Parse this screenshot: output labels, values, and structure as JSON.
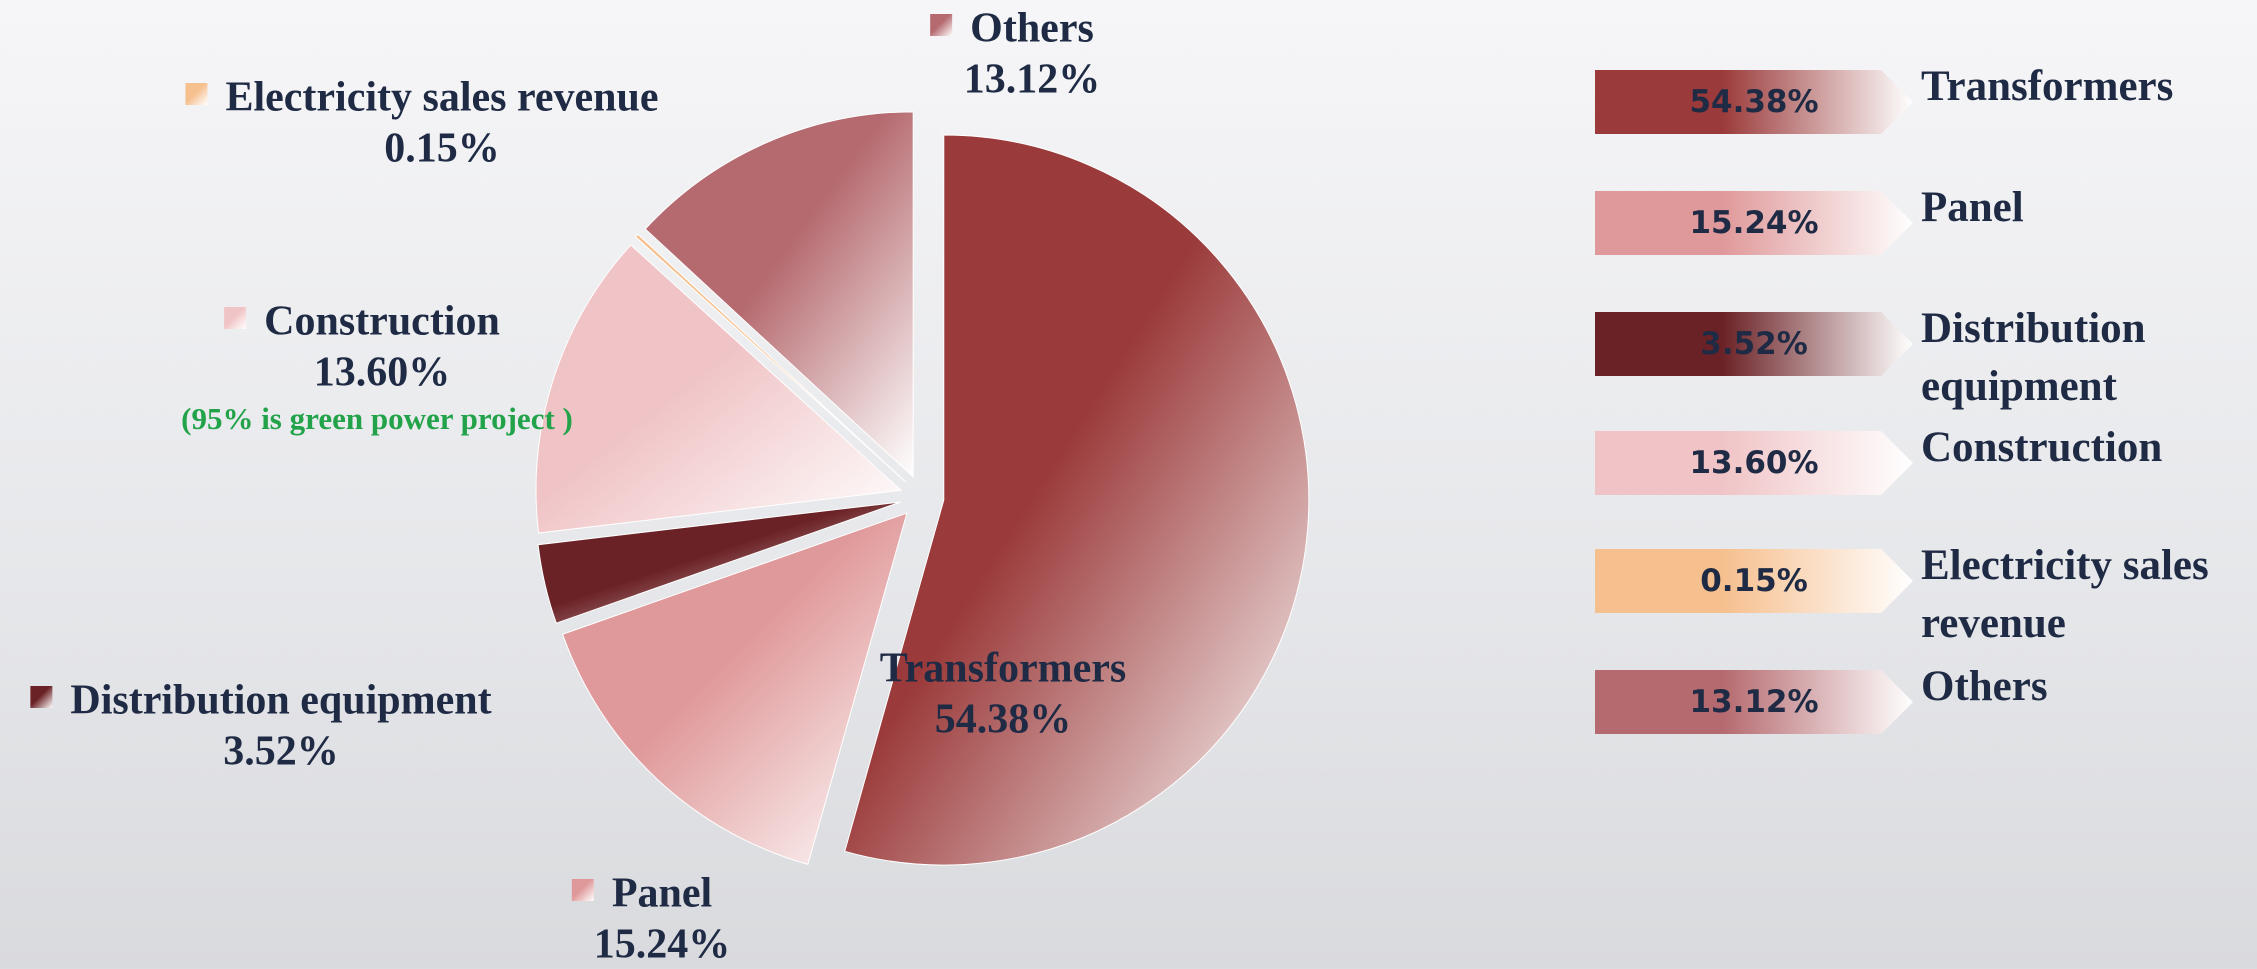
{
  "chart_data": {
    "type": "pie",
    "categories": [
      "Transformers",
      "Panel",
      "Distribution equipment",
      "Construction",
      "Electricity sales revenue",
      "Others"
    ],
    "values": [
      54.38,
      15.24,
      3.52,
      13.6,
      0.15,
      13.12
    ],
    "value_labels": [
      "54.38%",
      "15.24%",
      "3.52%",
      "13.60%",
      "0.15%",
      "13.12%"
    ],
    "colors": [
      "#9b3a3a",
      "#e0999a",
      "#6b2226",
      "#f0c4c6",
      "#f6bf8e",
      "#b56a6f"
    ],
    "annotations": [
      {
        "text": "(95% is green power project )",
        "category": "Construction"
      }
    ]
  }
}
